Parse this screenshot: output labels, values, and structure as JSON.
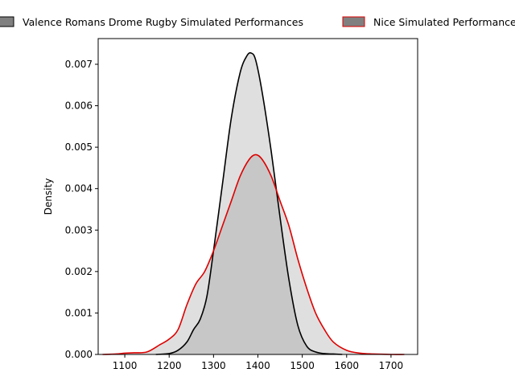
{
  "chart_data": {
    "type": "area",
    "title": "",
    "xlabel": "",
    "ylabel": "Density",
    "xlim": [
      1040,
      1760
    ],
    "ylim": [
      0,
      0.00762
    ],
    "x_ticks": [
      1100,
      1200,
      1300,
      1400,
      1500,
      1600,
      1700
    ],
    "x_tick_labels": [
      "1100",
      "1200",
      "1300",
      "1400",
      "1500",
      "1600",
      "1700"
    ],
    "y_ticks": [
      0,
      0.001,
      0.002,
      0.003,
      0.004,
      0.005,
      0.006,
      0.007
    ],
    "y_tick_labels": [
      "0.000",
      "0.001",
      "0.002",
      "0.003",
      "0.004",
      "0.005",
      "0.006",
      "0.007"
    ],
    "grid": false,
    "legend_position": "top-center, above plot",
    "series": [
      {
        "name": "Valence Romans Drome Rugby Simulated Performances",
        "line_color": "#000000",
        "fill_color": "#808080",
        "fill_opacity": 0.25,
        "x": [
          1170,
          1200,
          1220,
          1240,
          1255,
          1270,
          1285,
          1300,
          1320,
          1340,
          1360,
          1375,
          1385,
          1395,
          1410,
          1430,
          1450,
          1470,
          1490,
          1510,
          1530,
          1550,
          1570,
          1590
        ],
        "y": [
          0.0,
          2e-05,
          0.0001,
          0.0003,
          0.0006,
          0.00085,
          0.0014,
          0.0025,
          0.0041,
          0.0057,
          0.0068,
          0.0072,
          0.00727,
          0.0071,
          0.0063,
          0.0049,
          0.0033,
          0.0018,
          0.0007,
          0.0002,
          6e-05,
          2e-05,
          1e-05,
          0.0
        ]
      },
      {
        "name": "Nice Simulated Performances",
        "line_color": "#dd0000",
        "fill_color": "#808080",
        "fill_opacity": 0.25,
        "x": [
          1050,
          1080,
          1100,
          1120,
          1150,
          1180,
          1200,
          1220,
          1240,
          1260,
          1280,
          1300,
          1320,
          1340,
          1360,
          1380,
          1395,
          1410,
          1430,
          1450,
          1470,
          1490,
          1510,
          1530,
          1550,
          1570,
          1600,
          1630,
          1660,
          1700,
          1730
        ],
        "y": [
          0.0,
          1e-05,
          3e-05,
          4e-05,
          6e-05,
          0.00024,
          0.00037,
          0.0006,
          0.0012,
          0.0017,
          0.002,
          0.0025,
          0.0031,
          0.0037,
          0.0043,
          0.0047,
          0.00482,
          0.0047,
          0.0043,
          0.0037,
          0.0031,
          0.0023,
          0.0016,
          0.001,
          0.0006,
          0.0003,
          0.0001,
          3e-05,
          1e-05,
          0.0,
          0.0
        ]
      }
    ]
  }
}
